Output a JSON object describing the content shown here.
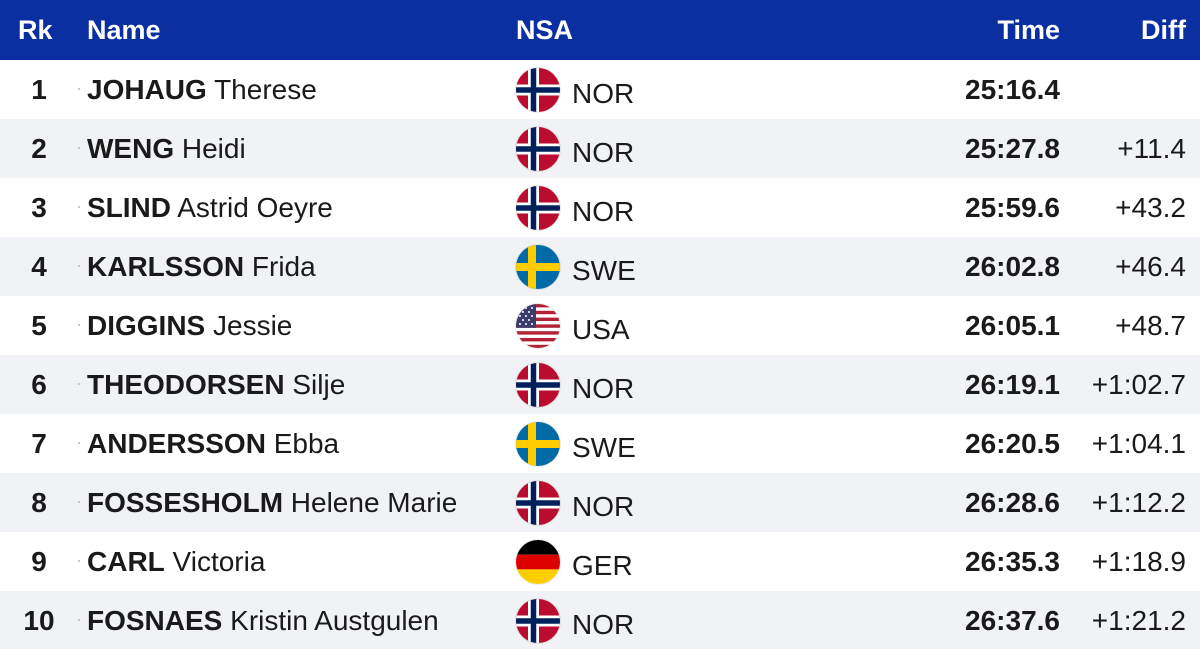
{
  "headers": {
    "rk": "Rk",
    "name": "Name",
    "nsa": "NSA",
    "time": "Time",
    "diff": "Diff"
  },
  "rows": [
    {
      "rk": "1",
      "last": "JOHAUG",
      "first": "Therese",
      "nsa": "NOR",
      "flag": "norway-flag-icon",
      "time": "25:16.4",
      "diff": ""
    },
    {
      "rk": "2",
      "last": "WENG",
      "first": "Heidi",
      "nsa": "NOR",
      "flag": "norway-flag-icon",
      "time": "25:27.8",
      "diff": "+11.4"
    },
    {
      "rk": "3",
      "last": "SLIND",
      "first": "Astrid Oeyre",
      "nsa": "NOR",
      "flag": "norway-flag-icon",
      "time": "25:59.6",
      "diff": "+43.2"
    },
    {
      "rk": "4",
      "last": "KARLSSON",
      "first": "Frida",
      "nsa": "SWE",
      "flag": "sweden-flag-icon",
      "time": "26:02.8",
      "diff": "+46.4"
    },
    {
      "rk": "5",
      "last": "DIGGINS",
      "first": "Jessie",
      "nsa": "USA",
      "flag": "usa-flag-icon",
      "time": "26:05.1",
      "diff": "+48.7"
    },
    {
      "rk": "6",
      "last": "THEODORSEN",
      "first": "Silje",
      "nsa": "NOR",
      "flag": "norway-flag-icon",
      "time": "26:19.1",
      "diff": "+1:02.7"
    },
    {
      "rk": "7",
      "last": "ANDERSSON",
      "first": "Ebba",
      "nsa": "SWE",
      "flag": "sweden-flag-icon",
      "time": "26:20.5",
      "diff": "+1:04.1"
    },
    {
      "rk": "8",
      "last": "FOSSESHOLM",
      "first": "Helene Marie",
      "nsa": "NOR",
      "flag": "norway-flag-icon",
      "time": "26:28.6",
      "diff": "+1:12.2"
    },
    {
      "rk": "9",
      "last": "CARL",
      "first": "Victoria",
      "nsa": "GER",
      "flag": "germany-flag-icon",
      "time": "26:35.3",
      "diff": "+1:18.9"
    },
    {
      "rk": "10",
      "last": "FOSNAES",
      "first": "Kristin Austgulen",
      "nsa": "NOR",
      "flag": "norway-flag-icon",
      "time": "26:37.6",
      "diff": "+1:21.2"
    }
  ],
  "colors": {
    "header_bg": "#0a2fa0",
    "header_text": "#ffffff",
    "row_alt_bg": "#f1f2f5"
  }
}
